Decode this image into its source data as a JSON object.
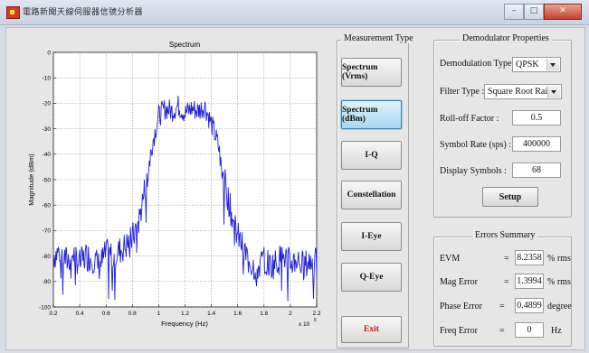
{
  "window": {
    "title": "電路新聞天線伺服器信號分析器",
    "minimize": "–",
    "maximize": "□",
    "close": "✕"
  },
  "measurement": {
    "legend": "Measurement Type",
    "buttons": [
      "Spectrum (Vrms)",
      "Spectrum (dBm)",
      "I-Q",
      "Constellation",
      "I-Eye",
      "Q-Eye"
    ],
    "active": "Spectrum (dBm)",
    "exit_label": "Exit"
  },
  "demod": {
    "legend": "Demodulator Properties",
    "demod_type_label": "Demodulation Type :",
    "demod_type_value": "QPSK",
    "filter_type_label": "Filter Type :",
    "filter_type_value": "Square Root Rai...",
    "rolloff_label": "Roll-off Factor :",
    "rolloff_value": "0.5",
    "symbol_rate_label": "Symbol Rate (sps) :",
    "symbol_rate_value": "400000",
    "display_symbols_label": "Display Symbols :",
    "display_symbols_value": "68",
    "setup_label": "Setup"
  },
  "errors": {
    "legend": "Errors Summary",
    "evm_label": "EVM",
    "evm_eq": "=",
    "evm_value": "8.2358",
    "evm_unit": "% rms",
    "mag_label": "Mag Error",
    "mag_eq": "=",
    "mag_value": "1.3994",
    "mag_unit": "% rms",
    "phase_label": "Phase Error",
    "phase_eq": "=",
    "phase_value": "0.4899",
    "phase_unit": "degree",
    "freq_label": "Freq Error",
    "freq_eq": "=",
    "freq_value": "0",
    "freq_unit": "Hz"
  },
  "colors": {
    "trace": "#1f1fd6",
    "exit_text": "#d01010",
    "active_button": "#a9d7f1"
  },
  "chart_data": {
    "type": "line",
    "title": "Spectrum",
    "xlabel": "Frequency (Hz)",
    "ylabel": "Magnitude (dBm)",
    "x_exponent_label": "x 10",
    "x_exponent": "6",
    "xlim": [
      0.2,
      2.2
    ],
    "ylim": [
      -100,
      0
    ],
    "grid": true,
    "xticks": [
      0.2,
      0.4,
      0.6,
      0.8,
      1,
      1.2,
      1.4,
      1.6,
      1.8,
      2,
      2.2
    ],
    "xtick_labels": [
      "0.2",
      "0.4",
      "0.6",
      "0.8",
      "1",
      "1.2",
      "1.4",
      "1.6",
      "1.8",
      "2",
      "2.2"
    ],
    "yticks": [
      0,
      -10,
      -20,
      -30,
      -40,
      -50,
      -60,
      -70,
      -80,
      -90,
      -100
    ],
    "ytick_labels": [
      "0",
      "-10",
      "-20",
      "-30",
      "-40",
      "-50",
      "-60",
      "-70",
      "-80",
      "-90",
      "-100"
    ],
    "series": [
      {
        "x": [
          0.2,
          0.25,
          0.3,
          0.35,
          0.4,
          0.45,
          0.5,
          0.55,
          0.6,
          0.65,
          0.7,
          0.75,
          0.8,
          0.85,
          0.9,
          0.95,
          1.0,
          1.05,
          1.1,
          1.15,
          1.2,
          1.25,
          1.3,
          1.35,
          1.4,
          1.45,
          1.5,
          1.55,
          1.6,
          1.65,
          1.7,
          1.75,
          1.8,
          1.85,
          1.9,
          1.95,
          2.0,
          2.05,
          2.1,
          2.15,
          2.2
        ],
        "y": [
          -80,
          -78,
          -82,
          -79,
          -83,
          -80,
          -81,
          -84,
          -79,
          -80,
          -78,
          -76,
          -73,
          -66,
          -52,
          -36,
          -25,
          -22,
          -23,
          -21,
          -24,
          -22,
          -23,
          -21,
          -28,
          -36,
          -50,
          -63,
          -72,
          -78,
          -83,
          -85,
          -81,
          -84,
          -82,
          -80,
          -83,
          -81,
          -84,
          -82,
          -83
        ]
      }
    ]
  }
}
